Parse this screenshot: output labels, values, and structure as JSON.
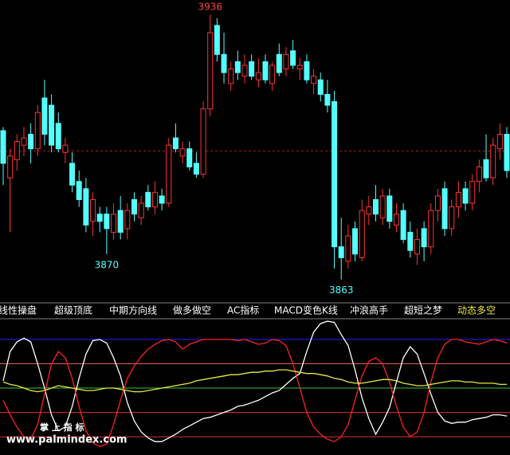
{
  "chart_data": [
    {
      "type": "candlestick",
      "up_color": "#ff3232",
      "down_color": "#54ffff",
      "ylim": [
        3857,
        3940
      ],
      "reference_price": 3898.4,
      "reference_color": "#a01818",
      "open": [
        3904,
        3891,
        3896,
        3900,
        3903,
        3899,
        3913,
        3911,
        3906,
        3898,
        3895,
        3890,
        3888,
        3879,
        3881,
        3881,
        3876,
        3882,
        3877,
        3885,
        3880,
        3887,
        3883,
        3886,
        3884,
        3902,
        3897,
        3899,
        3895,
        3892,
        3910,
        3933,
        3925,
        3917,
        3923,
        3919,
        3923,
        3918,
        3923,
        3917,
        3925,
        3921,
        3926,
        3921,
        3923,
        3917,
        3918,
        3914,
        3912,
        3872,
        3868,
        3877,
        3869,
        3881,
        3885,
        3880,
        3886,
        3878,
        3882,
        3876,
        3870,
        3877,
        3872,
        3882,
        3888,
        3877,
        3883,
        3888,
        3884,
        3890,
        3896,
        3891,
        3899,
        3903
      ],
      "high": [
        3905,
        3899,
        3903,
        3905,
        3906,
        3911,
        3918,
        3914,
        3909,
        3902,
        3898,
        3893,
        3891,
        3887,
        3883,
        3883,
        3884,
        3886,
        3884,
        3887,
        3886,
        3889,
        3890,
        3888,
        3902,
        3906,
        3901,
        3901,
        3898,
        3912,
        3936,
        3935,
        3931,
        3923,
        3926,
        3925,
        3925,
        3924,
        3925,
        3923,
        3928,
        3927,
        3929,
        3924,
        3925,
        3921,
        3920,
        3918,
        3915,
        3880,
        3878,
        3879,
        3885,
        3886,
        3889,
        3888,
        3888,
        3884,
        3884,
        3879,
        3877,
        3879,
        3884,
        3888,
        3890,
        3885,
        3890,
        3890,
        3892,
        3896,
        3903,
        3902,
        3906,
        3905
      ],
      "low": [
        3889,
        3876,
        3893,
        3897,
        3895,
        3897,
        3900,
        3898,
        3898,
        3895,
        3887,
        3883,
        3876,
        3875,
        3876,
        3870,
        3874,
        3874,
        3874,
        3879,
        3878,
        3882,
        3881,
        3882,
        3883,
        3898,
        3895,
        3893,
        3891,
        3891,
        3908,
        3923,
        3917,
        3915,
        3918,
        3917,
        3918,
        3916,
        3917,
        3915,
        3919,
        3919,
        3921,
        3918,
        3917,
        3914,
        3912,
        3909,
        3866,
        3863,
        3866,
        3868,
        3868,
        3878,
        3879,
        3878,
        3877,
        3876,
        3873,
        3869,
        3867,
        3868,
        3870,
        3879,
        3875,
        3875,
        3880,
        3882,
        3882,
        3887,
        3890,
        3889,
        3896,
        3891
      ],
      "close": [
        3895,
        3897,
        3901,
        3902,
        3899,
        3909,
        3903,
        3900,
        3899,
        3900,
        3889,
        3885,
        3878,
        3885,
        3879,
        3877,
        3881,
        3876,
        3882,
        3881,
        3884,
        3883,
        3887,
        3884,
        3900,
        3899,
        3899,
        3894,
        3892,
        3910,
        3931,
        3925,
        3920,
        3921,
        3920,
        3922,
        3919,
        3920,
        3918,
        3922,
        3920,
        3925,
        3922,
        3922,
        3918,
        3919,
        3914,
        3911,
        3872,
        3869,
        3875,
        3870,
        3882,
        3883,
        3881,
        3886,
        3879,
        3881,
        3874,
        3871,
        3874,
        3872,
        3882,
        3886,
        3877,
        3883,
        3887,
        3884,
        3890,
        3894,
        3891,
        3900,
        3903,
        3893
      ]
    },
    {
      "type": "line",
      "ylim": [
        5,
        117
      ],
      "hlines": [
        100,
        80,
        60,
        40,
        20
      ],
      "hline_colors": [
        "#2020ff",
        "#e06060",
        "#40c040",
        "#e03030",
        "#e03030"
      ],
      "series": [
        {
          "color": "#ffffff",
          "values": [
            66,
            90,
            98,
            101,
            98,
            80,
            60,
            38,
            25,
            28,
            45,
            68,
            88,
            99,
            100,
            97,
            85,
            70,
            48,
            33,
            24,
            19,
            16,
            16,
            19,
            22,
            26,
            29,
            32,
            35,
            36,
            38,
            40,
            42,
            45,
            46,
            48,
            50,
            53,
            56,
            58,
            63,
            68,
            72,
            90,
            106,
            113,
            115,
            114,
            104,
            95,
            75,
            52,
            35,
            22,
            32,
            44,
            65,
            85,
            94,
            88,
            72,
            55,
            40,
            33,
            31,
            32,
            32,
            34,
            35,
            36,
            38,
            38,
            37
          ]
        },
        {
          "color": "#ff2020",
          "values": [
            50,
            38,
            28,
            20,
            18,
            30,
            55,
            80,
            90,
            85,
            68,
            45,
            25,
            15,
            12,
            14,
            30,
            50,
            68,
            78,
            86,
            92,
            96,
            99,
            100,
            98,
            92,
            96,
            98,
            100,
            100,
            100,
            100,
            100,
            99,
            100,
            98,
            96,
            97,
            100,
            99,
            95,
            80,
            60,
            40,
            28,
            22,
            18,
            16,
            20,
            30,
            50,
            70,
            82,
            85,
            80,
            65,
            45,
            28,
            20,
            24,
            40,
            65,
            85,
            96,
            100,
            100,
            98,
            97,
            96,
            98,
            100,
            99,
            97
          ]
        },
        {
          "color": "#e8e840",
          "values": [
            65,
            63,
            62,
            60,
            58,
            57,
            58,
            60,
            62,
            61,
            60,
            59,
            58,
            58,
            59,
            60,
            60,
            59,
            58,
            57,
            57,
            58,
            59,
            60,
            61,
            62,
            63,
            64,
            66,
            67,
            68,
            69,
            70,
            71,
            71,
            72,
            73,
            73,
            74,
            74,
            75,
            75,
            74,
            73,
            72,
            72,
            71,
            70,
            68,
            67,
            65,
            64,
            64,
            65,
            66,
            67,
            67,
            66,
            64,
            63,
            62,
            62,
            63,
            64,
            65,
            66,
            66,
            65,
            65,
            64,
            64,
            64,
            63,
            63
          ]
        }
      ]
    }
  ],
  "tabs": [
    "线性操盘",
    "超级顶底",
    "中期方向线",
    "做多做空",
    "AC指标",
    "MACD变色K线",
    "冲浪高手",
    "超短之梦",
    "动态多空"
  ],
  "active_tab": 8,
  "watermark": {
    "title": "掌 上 指 标",
    "url": "www.palmindex.com"
  }
}
